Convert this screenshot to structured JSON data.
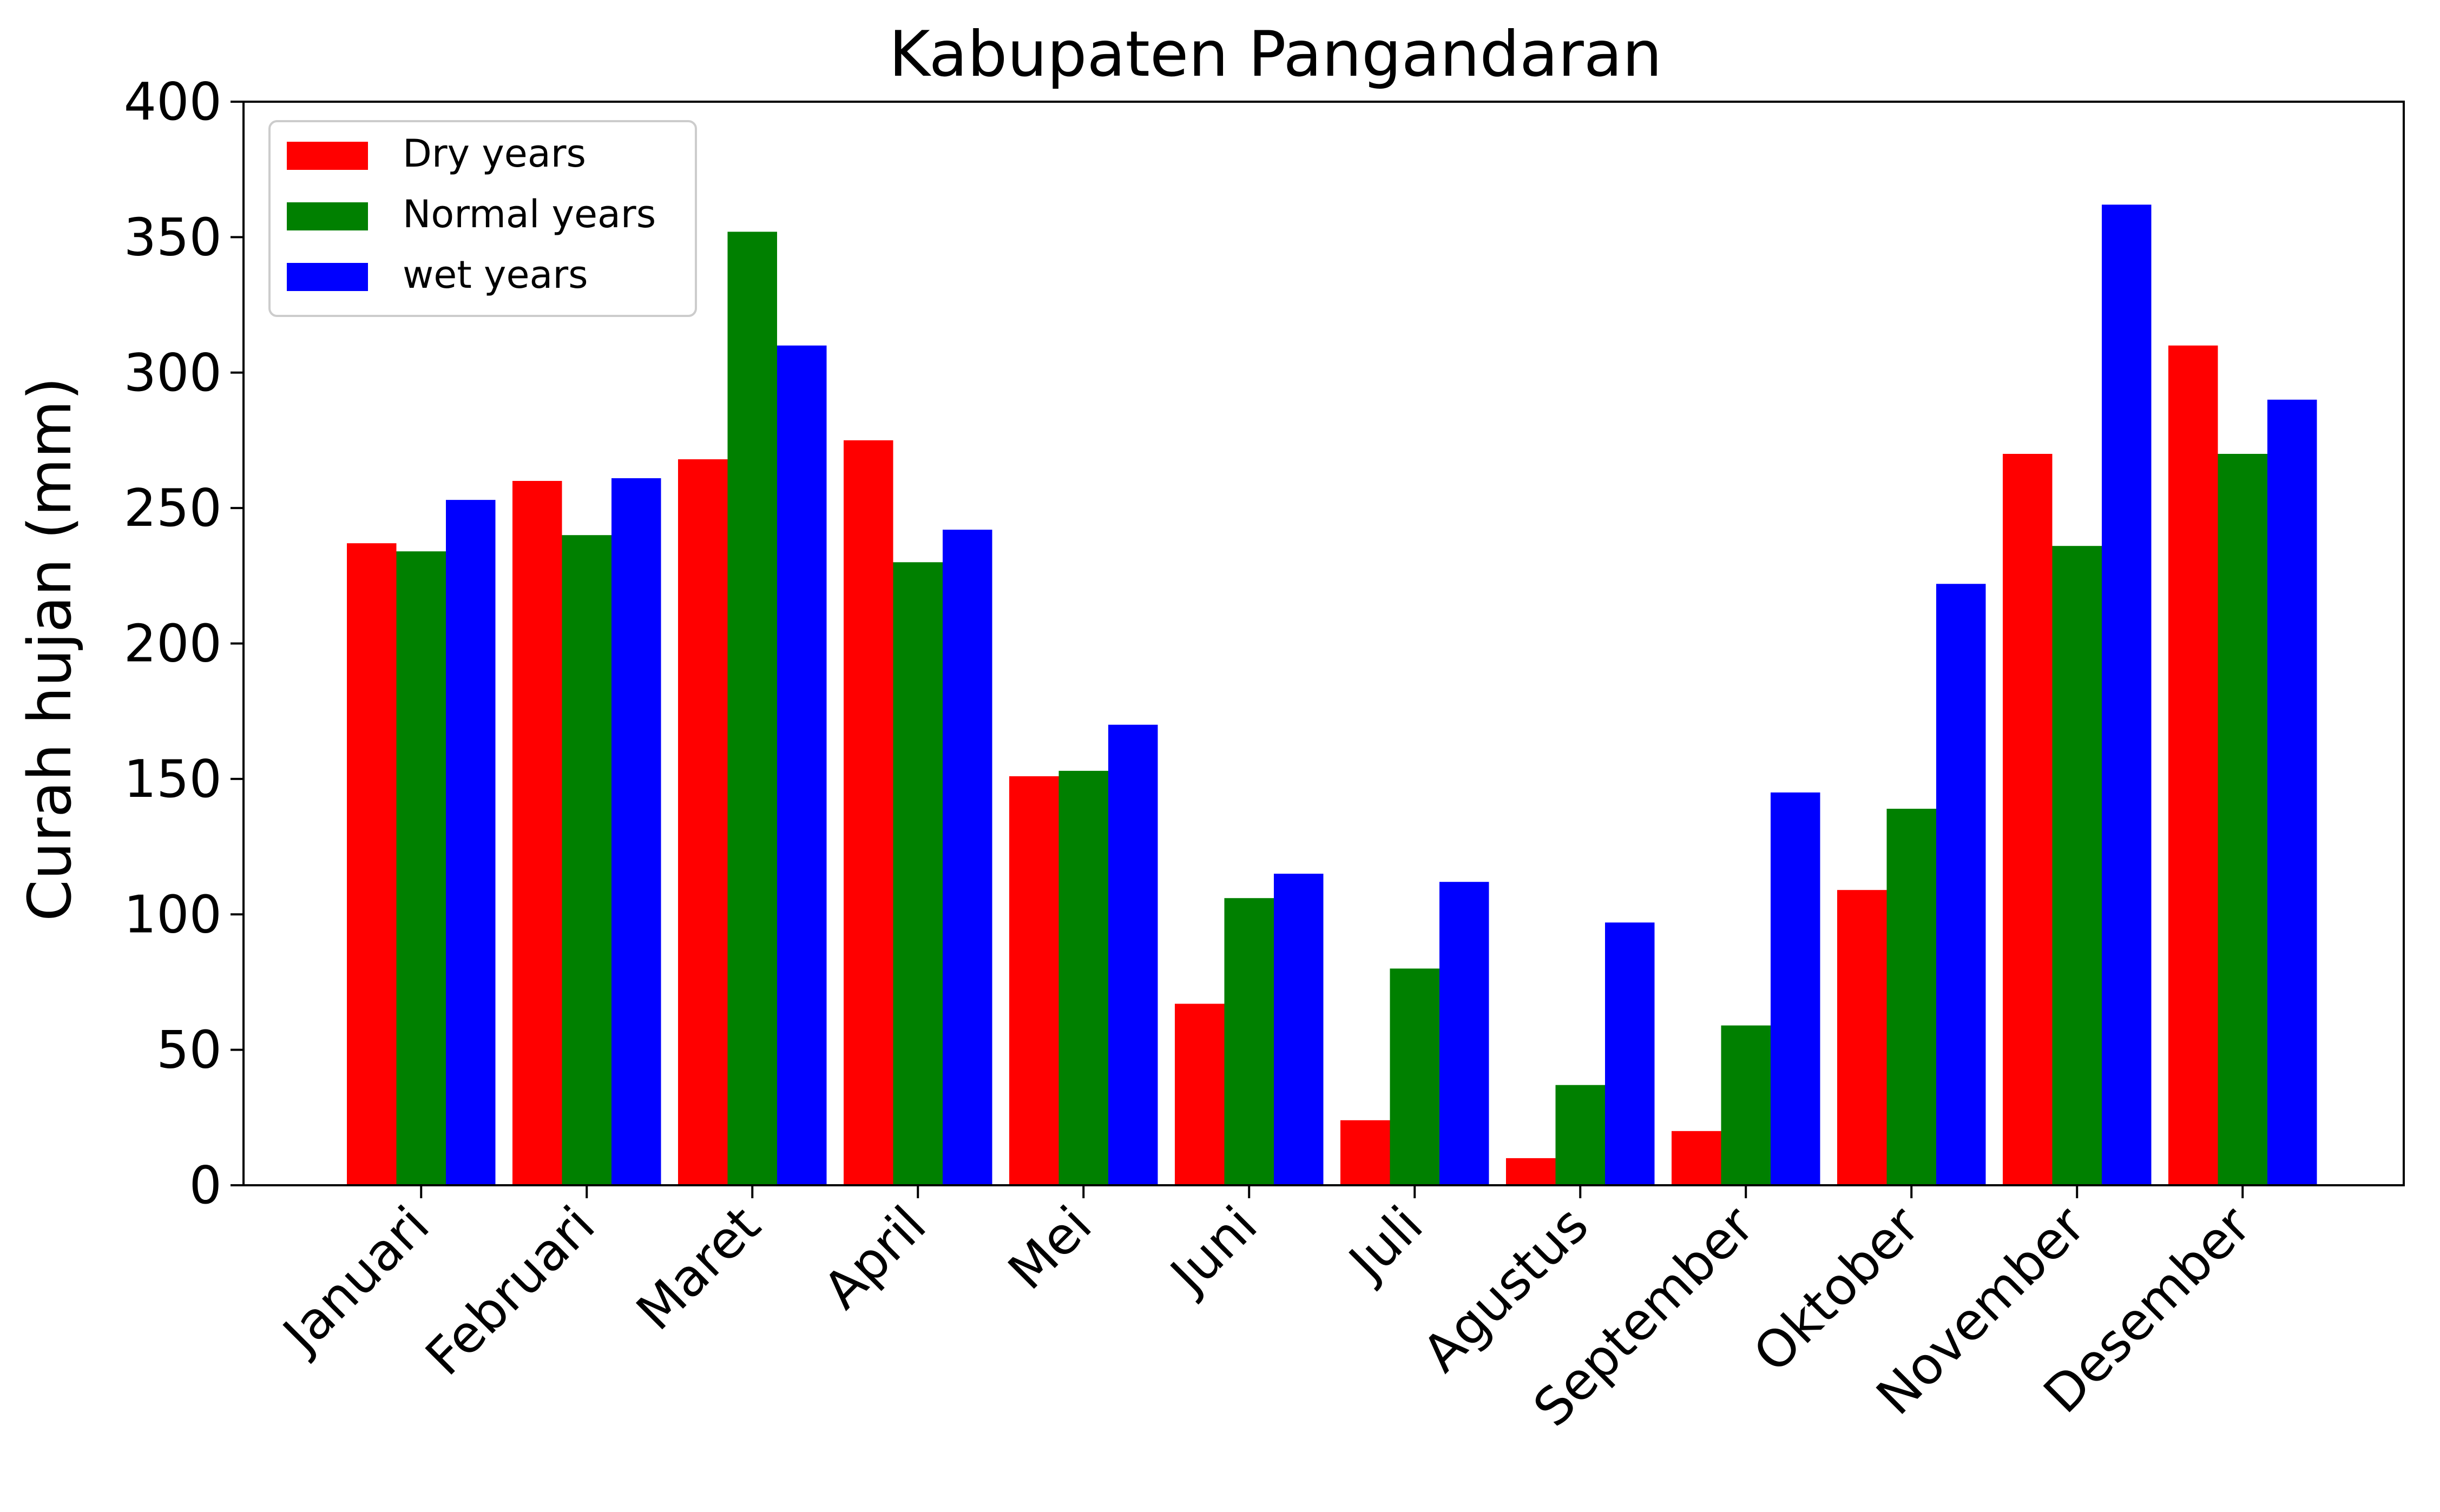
{
  "chart_data": {
    "type": "bar",
    "title": "Kabupaten Pangandaran",
    "xlabel": "",
    "ylabel": "Curah hujan (mm)",
    "ylim": [
      0,
      400
    ],
    "yticks": [
      0,
      50,
      100,
      150,
      200,
      250,
      300,
      350,
      400
    ],
    "grid": false,
    "legend_position": "top-left",
    "categories": [
      "Januari",
      "Februari",
      "Maret",
      "April",
      "Mei",
      "Juni",
      "Juli",
      "Agustus",
      "September",
      "Oktober",
      "November",
      "Desember"
    ],
    "series": [
      {
        "name": "Dry years",
        "color": "#ff0000",
        "values": [
          237,
          260,
          268,
          275,
          151,
          67,
          24,
          10,
          20,
          109,
          270,
          310
        ]
      },
      {
        "name": "Normal years",
        "color": "#008000",
        "values": [
          234,
          240,
          352,
          230,
          153,
          106,
          80,
          37,
          59,
          139,
          236,
          270
        ]
      },
      {
        "name": "wet years",
        "color": "#0000ff",
        "values": [
          253,
          261,
          310,
          242,
          170,
          115,
          112,
          97,
          145,
          222,
          362,
          290
        ]
      }
    ]
  }
}
